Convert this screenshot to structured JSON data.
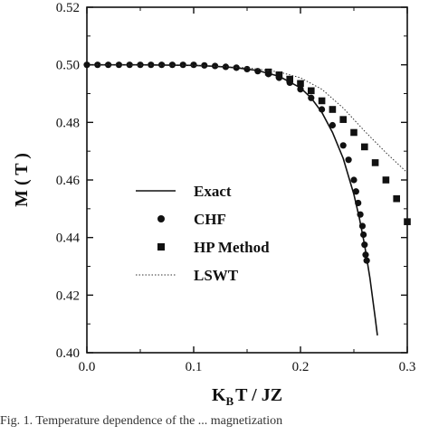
{
  "chart_data": {
    "type": "scatter",
    "xlabel_main": "K",
    "xlabel_sub": "B",
    "xlabel_rest": "T / JZ",
    "ylabel": "M ( T )",
    "xlim": [
      0.0,
      0.3
    ],
    "ylim": [
      0.4,
      0.52
    ],
    "xticks": [
      0.0,
      0.1,
      0.2,
      0.3
    ],
    "xtick_labels": [
      "0.0",
      "0.1",
      "0.2",
      "0.3"
    ],
    "yticks": [
      0.4,
      0.42,
      0.44,
      0.46,
      0.48,
      0.5,
      0.52
    ],
    "ytick_labels": [
      "0.40",
      "0.42",
      "0.44",
      "0.46",
      "0.48",
      "0.50",
      "0.52"
    ],
    "legend_position": "center-left",
    "series": [
      {
        "name": "Exact",
        "style": "solid-line",
        "color": "#111111",
        "x": [
          0.0,
          0.05,
          0.1,
          0.12,
          0.14,
          0.16,
          0.18,
          0.2,
          0.21,
          0.22,
          0.23,
          0.24,
          0.25,
          0.255,
          0.26,
          0.265,
          0.27,
          0.272
        ],
        "y": [
          0.5,
          0.5,
          0.4998,
          0.4995,
          0.499,
          0.498,
          0.496,
          0.492,
          0.4885,
          0.4835,
          0.4765,
          0.4675,
          0.455,
          0.447,
          0.4375,
          0.426,
          0.412,
          0.406
        ]
      },
      {
        "name": "CHF",
        "style": "circle-marker",
        "color": "#111111",
        "x": [
          0.0,
          0.01,
          0.02,
          0.03,
          0.04,
          0.05,
          0.06,
          0.07,
          0.08,
          0.09,
          0.1,
          0.11,
          0.12,
          0.13,
          0.14,
          0.15,
          0.16,
          0.17,
          0.18,
          0.19,
          0.2,
          0.21,
          0.22,
          0.23,
          0.24,
          0.245,
          0.25,
          0.252,
          0.254,
          0.256,
          0.258,
          0.259,
          0.26,
          0.261,
          0.262
        ],
        "y": [
          0.5,
          0.5,
          0.5,
          0.5,
          0.5,
          0.5,
          0.5,
          0.5,
          0.5,
          0.5,
          0.5,
          0.4998,
          0.4996,
          0.4993,
          0.499,
          0.4985,
          0.4978,
          0.4968,
          0.4955,
          0.4938,
          0.4915,
          0.4885,
          0.4845,
          0.479,
          0.472,
          0.467,
          0.46,
          0.456,
          0.452,
          0.448,
          0.444,
          0.441,
          0.4375,
          0.434,
          0.432
        ]
      },
      {
        "name": "HP Method",
        "style": "square-marker",
        "color": "#111111",
        "x": [
          0.17,
          0.18,
          0.19,
          0.2,
          0.21,
          0.22,
          0.23,
          0.24,
          0.25,
          0.26,
          0.27,
          0.28,
          0.29,
          0.3
        ],
        "y": [
          0.4975,
          0.4965,
          0.495,
          0.4935,
          0.491,
          0.4875,
          0.4845,
          0.481,
          0.4765,
          0.4715,
          0.466,
          0.46,
          0.4535,
          0.4455
        ]
      },
      {
        "name": "LSWT",
        "style": "dotted-line",
        "color": "#333333",
        "x": [
          0.0,
          0.1,
          0.15,
          0.18,
          0.2,
          0.22,
          0.24,
          0.26,
          0.28,
          0.3
        ],
        "y": [
          0.5,
          0.4998,
          0.499,
          0.4975,
          0.4955,
          0.4915,
          0.485,
          0.477,
          0.4695,
          0.4625
        ]
      }
    ]
  },
  "caption": "Fig. 1. Temperature dependence of the ... magnetization"
}
